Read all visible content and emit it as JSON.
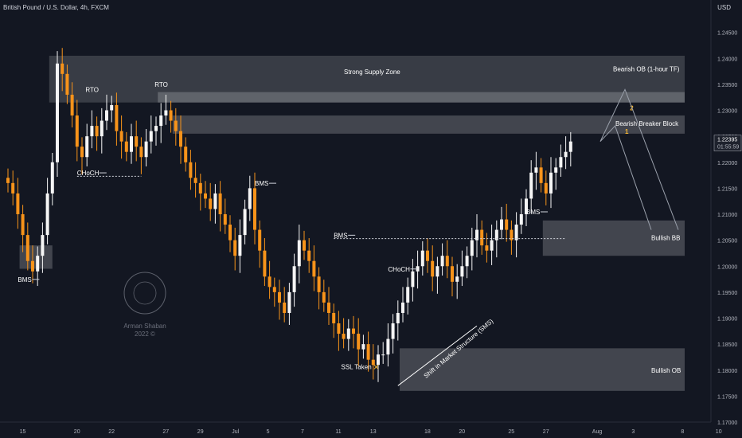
{
  "header": {
    "symbol": "British Pound / U.S. Dollar, 4h, FXCM",
    "currency": "USD"
  },
  "watermark": {
    "line1": "Arman Shaban",
    "line2": "2022 ©"
  },
  "colors": {
    "background": "#131722",
    "bull": "#f5f5f5",
    "bear": "#f7931a",
    "zone": "#ffffff",
    "accent": "#f7b733"
  },
  "chart_data": {
    "type": "candlestick",
    "title": "British Pound / U.S. Dollar, 4h, FXCM",
    "ylim": [
      1.17,
      1.25
    ],
    "y_ticks": [
      "1.24500",
      "1.24000",
      "1.23500",
      "1.23000",
      "1.22500",
      "1.22000",
      "1.21500",
      "1.21000",
      "1.20500",
      "1.20000",
      "1.19500",
      "1.19000",
      "1.18500",
      "1.18000",
      "1.17500",
      "1.17000"
    ],
    "y_tick_values": [
      1.245,
      1.24,
      1.235,
      1.23,
      1.225,
      1.22,
      1.215,
      1.21,
      1.205,
      1.2,
      1.195,
      1.19,
      1.185,
      1.18,
      1.175,
      1.17
    ],
    "x_ticks": [
      "15",
      "20",
      "22",
      "27",
      "29",
      "Jul",
      "5",
      "7",
      "11",
      "13",
      "18",
      "20",
      "25",
      "27",
      "Aug",
      "3",
      "8",
      "10"
    ],
    "x_tick_index": [
      3,
      14,
      21,
      32,
      39,
      46,
      53,
      60,
      67,
      74,
      85,
      92,
      102,
      109,
      119,
      127,
      137,
      144
    ],
    "last_price": "1.22395",
    "countdown": "01:55:59",
    "closes": [
      1.216,
      1.214,
      1.21,
      1.206,
      1.201,
      1.199,
      1.202,
      1.206,
      1.214,
      1.22,
      1.239,
      1.237,
      1.233,
      1.229,
      1.223,
      1.221,
      1.225,
      1.227,
      1.225,
      1.228,
      1.23,
      1.231,
      1.226,
      1.224,
      1.222,
      1.225,
      1.223,
      1.221,
      1.224,
      1.226,
      1.227,
      1.229,
      1.23,
      1.228,
      1.226,
      1.223,
      1.22,
      1.217,
      1.216,
      1.214,
      1.213,
      1.211,
      1.214,
      1.21,
      1.208,
      1.205,
      1.202,
      1.206,
      1.211,
      1.215,
      1.207,
      1.203,
      1.198,
      1.196,
      1.195,
      1.193,
      1.191,
      1.195,
      1.2,
      1.205,
      1.203,
      1.201,
      1.198,
      1.195,
      1.193,
      1.191,
      1.189,
      1.187,
      1.186,
      1.188,
      1.187,
      1.184,
      1.185,
      1.182,
      1.181,
      1.183,
      1.183,
      1.186,
      1.189,
      1.191,
      1.193,
      1.196,
      1.199,
      1.2,
      1.203,
      1.201,
      1.198,
      1.2,
      1.202,
      1.2,
      1.197,
      1.198,
      1.2,
      1.202,
      1.205,
      1.207,
      1.204,
      1.203,
      1.205,
      1.207,
      1.209,
      1.207,
      1.205,
      1.208,
      1.21,
      1.213,
      1.218,
      1.219,
      1.216,
      1.214,
      1.218,
      1.219,
      1.221,
      1.222,
      1.224
    ],
    "zones": [
      {
        "label": "Strong Supply Zone",
        "y1": 1.2405,
        "y2": 1.2315,
        "from_index": 9
      },
      {
        "label": "Bearish OB (1-hour TF)",
        "y1": 1.2335,
        "y2": 1.2315,
        "from_index": 31
      },
      {
        "label": "Bearish Breaker Block",
        "y1": 1.229,
        "y2": 1.2255,
        "from_index": 34
      },
      {
        "label": "Bullish BB",
        "y1": 1.2088,
        "y2": 1.202,
        "from_index": 109
      },
      {
        "label": "Bullish OB",
        "y1": 1.1842,
        "y2": 1.176,
        "from_index": 80
      },
      {
        "label": "",
        "y1": 1.204,
        "y2": 1.1995,
        "from_index": 3,
        "to_index": 9
      }
    ],
    "annotations": [
      {
        "text": "RTO",
        "index": 17,
        "y": 1.2335
      },
      {
        "text": "RTO",
        "index": 31,
        "y": 1.2345
      },
      {
        "text": "CHoCH",
        "index": 14,
        "y": 1.2175
      },
      {
        "text": "BMS",
        "index": 2,
        "y": 1.197
      },
      {
        "text": "BMS",
        "index": 50,
        "y": 1.2155
      },
      {
        "text": "BMS",
        "index": 66,
        "y": 1.2055
      },
      {
        "text": "CHoCH",
        "index": 77,
        "y": 1.199
      },
      {
        "text": "BMS",
        "index": 105,
        "y": 1.21
      },
      {
        "text": "SSL Taken",
        "index": 72,
        "y": 1.1802
      },
      {
        "text": "Shift in Market Structure (SMS)",
        "index": 86,
        "y": 1.179
      },
      {
        "text": "1",
        "index": 125,
        "y": 1.2255
      },
      {
        "text": "2",
        "index": 126,
        "y": 1.23
      }
    ]
  }
}
